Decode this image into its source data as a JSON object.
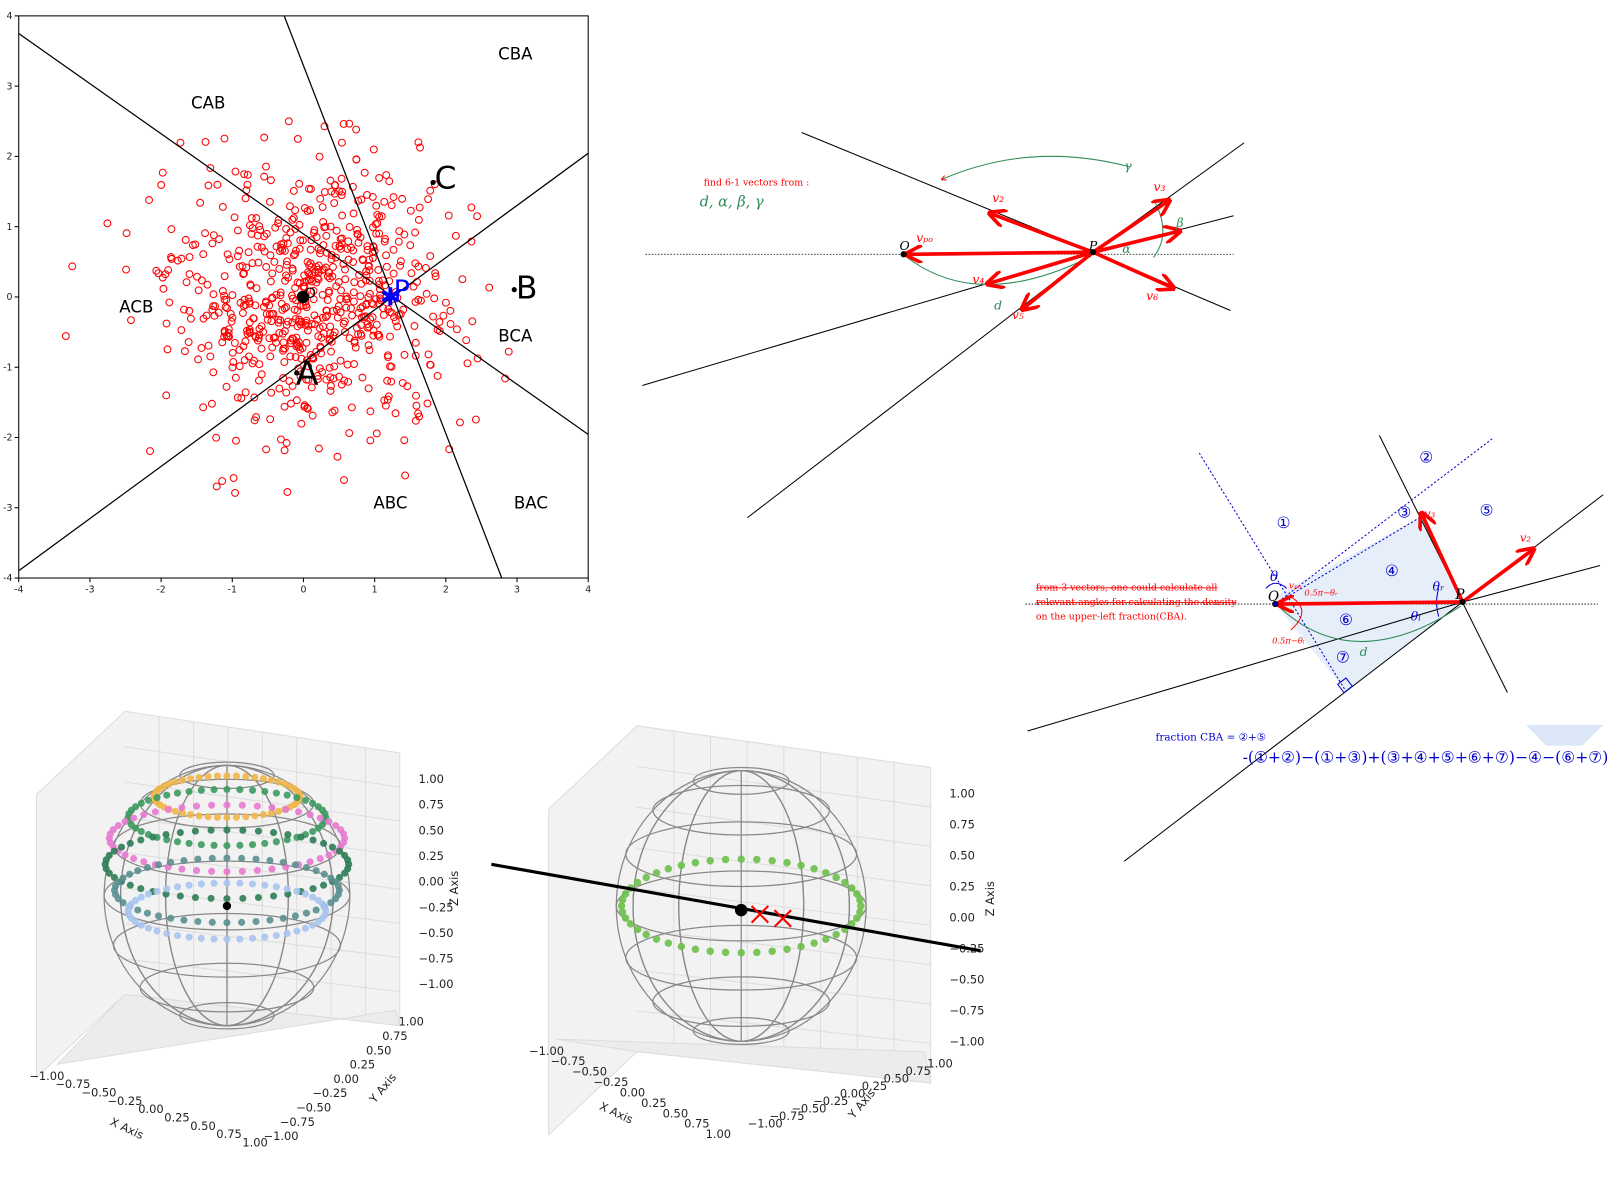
{
  "scatter_panel": {
    "xticks": [
      -4,
      -3,
      -2,
      -1,
      0,
      1,
      2,
      3,
      4
    ],
    "yticks": [
      -4,
      -3,
      -2,
      -1,
      0,
      1,
      2,
      3,
      4
    ],
    "regions": [
      "CBA",
      "CAB",
      "ACB",
      "BCA",
      "ABC",
      "BAC"
    ],
    "points": [
      "C",
      "B",
      "A",
      "P",
      "O"
    ]
  },
  "vector_panel": {
    "note": "find 6-1 vectors from :",
    "params": "d, α, β, γ",
    "labels": [
      "O",
      "P",
      "vₚₒ",
      "v₂",
      "v₃",
      "v₄",
      "v₅",
      "v₆",
      "γ",
      "β",
      "α",
      "d"
    ]
  },
  "fraction_panel": {
    "note_lines": [
      "from 3 vectors, one could calculate all",
      "relevant angles for calculating the density",
      "on the upper-left fraction(CBA)."
    ],
    "regions": [
      "①",
      "②",
      "③",
      "④",
      "⑤",
      "⑥",
      "⑦"
    ],
    "labels": [
      "O",
      "P",
      "θ",
      "θᵣ",
      "θₗ",
      "0.5π−θᵣ",
      "0.5π−θₗ",
      "d",
      "v₃",
      "v₂",
      "vₚₒ"
    ],
    "formula_head": "fraction CBA = ②+⑤",
    "formula_tail": "-(①+②)−(①+③)+(③+④+⑤+⑥+⑦)−④−(⑥+⑦)"
  },
  "sphere_panels": {
    "ticks": [
      "−1.00",
      "−0.75",
      "−0.50",
      "−0.25",
      "0.00",
      "0.25",
      "0.50",
      "0.75",
      "1.00"
    ],
    "x_label": "X Axis",
    "y_label": "Y Axis",
    "z_label": "Z Axis"
  }
}
